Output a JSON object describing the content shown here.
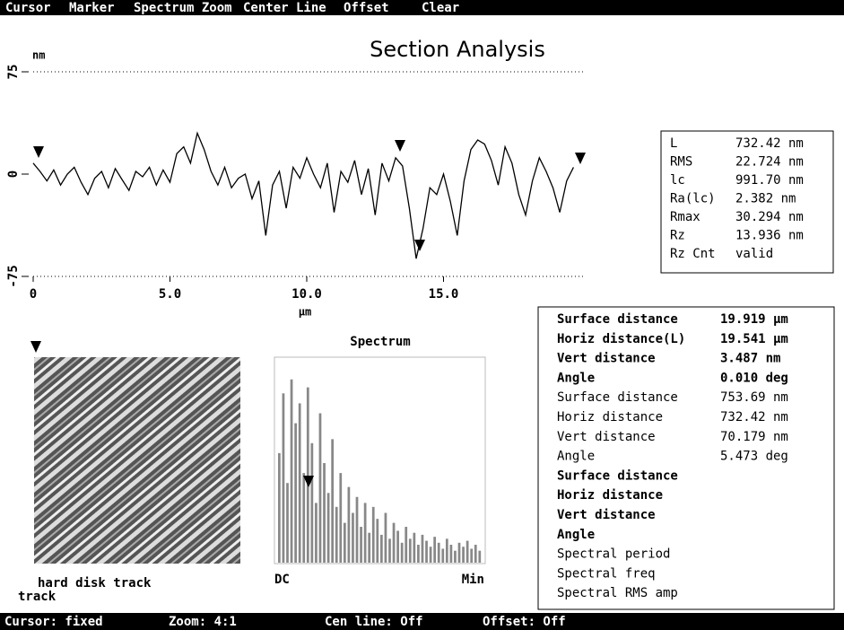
{
  "menu": [
    "Cursor",
    "Marker",
    "Spectrum Zoom",
    "Center Line",
    "Offset",
    "Clear"
  ],
  "title": "Section Analysis",
  "chart_data": [
    {
      "type": "line",
      "y_unit": "nm",
      "x_unit": "µm",
      "color": "#000000",
      "x": [
        0,
        0.25,
        0.5,
        0.75,
        1,
        1.25,
        1.5,
        1.75,
        2,
        2.25,
        2.5,
        2.75,
        3,
        3.25,
        3.5,
        3.75,
        4,
        4.25,
        4.5,
        4.75,
        5,
        5.25,
        5.5,
        5.75,
        6,
        6.25,
        6.5,
        6.75,
        7,
        7.25,
        7.5,
        7.75,
        8,
        8.25,
        8.5,
        8.75,
        9,
        9.25,
        9.5,
        9.75,
        10,
        10.25,
        10.5,
        10.75,
        11,
        11.25,
        11.5,
        11.75,
        12,
        12.25,
        12.5,
        12.75,
        13,
        13.25,
        13.5,
        13.75,
        14,
        14.25,
        14.5,
        14.75,
        15,
        15.25,
        15.5,
        15.75,
        16,
        16.25,
        16.5,
        16.75,
        17,
        17.25,
        17.5,
        17.75,
        18,
        18.25,
        18.5,
        18.75,
        19,
        19.25,
        19.5,
        19.75
      ],
      "values": [
        8,
        2,
        -5,
        3,
        -8,
        0,
        5,
        -6,
        -15,
        -3,
        2,
        -10,
        4,
        -4,
        -12,
        2,
        -2,
        5,
        -8,
        3,
        -6,
        15,
        20,
        8,
        30,
        18,
        2,
        -8,
        5,
        -10,
        -3,
        0,
        -18,
        -5,
        -45,
        -8,
        2,
        -25,
        5,
        -3,
        12,
        0,
        -10,
        8,
        -28,
        2,
        -6,
        10,
        -15,
        4,
        -30,
        8,
        -5,
        12,
        6,
        -25,
        -62,
        -40,
        -10,
        -15,
        0,
        -20,
        -45,
        -5,
        18,
        25,
        22,
        10,
        -8,
        20,
        8,
        -15,
        -30,
        -5,
        12,
        2,
        -10,
        -28,
        -5,
        5
      ],
      "xlim": [
        0,
        20
      ],
      "ylim": [
        -75,
        75
      ],
      "xticks": [
        0,
        {
          "value": 5,
          "label": "5.0"
        },
        {
          "value": 10,
          "label": "10.0"
        },
        {
          "value": 15,
          "label": "15.0"
        }
      ],
      "yticks": [
        -75,
        0,
        75
      ]
    },
    {
      "type": "bar",
      "title": "Spectrum",
      "color": "#888888",
      "xlabels": [
        "DC",
        "Min"
      ],
      "ylim": [
        0,
        100
      ],
      "values": [
        55,
        85,
        40,
        92,
        70,
        80,
        45,
        88,
        60,
        30,
        75,
        50,
        35,
        62,
        28,
        45,
        20,
        38,
        25,
        33,
        18,
        30,
        15,
        28,
        22,
        14,
        25,
        12,
        20,
        16,
        10,
        18,
        12,
        15,
        9,
        14,
        11,
        8,
        13,
        10,
        7,
        12,
        9,
        6,
        10,
        8,
        11,
        7,
        9,
        6
      ]
    }
  ],
  "image_caption": [
    "hard disk track",
    "track"
  ],
  "roughness": [
    [
      "L",
      "732.42 nm"
    ],
    [
      "RMS",
      "22.724 nm"
    ],
    [
      "lc",
      "991.70 nm"
    ],
    [
      "Ra(lc)",
      "2.382 nm"
    ],
    [
      "Rmax",
      "30.294 nm"
    ],
    [
      "Rz",
      "13.936 nm"
    ],
    [
      "Rz Cnt",
      "valid"
    ]
  ],
  "measurements": [
    [
      "Surface distance",
      "19.919 µm"
    ],
    [
      "Horiz distance(L)",
      "19.541 µm"
    ],
    [
      "Vert distance",
      "3.487 nm"
    ],
    [
      "Angle",
      "0.010 deg"
    ],
    [
      "Surface distance",
      "753.69 nm"
    ],
    [
      "Horiz distance",
      "732.42 nm"
    ],
    [
      "Vert distance",
      "70.179 nm"
    ],
    [
      "Angle",
      "5.473 deg"
    ],
    [
      "Surface distance"
    ],
    [
      "Horiz distance"
    ],
    [
      "Vert distance"
    ],
    [
      "Angle"
    ],
    [
      "Spectral period"
    ],
    [
      "Spectral freq"
    ],
    [
      "Spectral RMS amp"
    ]
  ],
  "status": [
    "Cursor: fixed",
    "Zoom: 4:1",
    "Cen line: Off",
    "Offset: Off"
  ]
}
